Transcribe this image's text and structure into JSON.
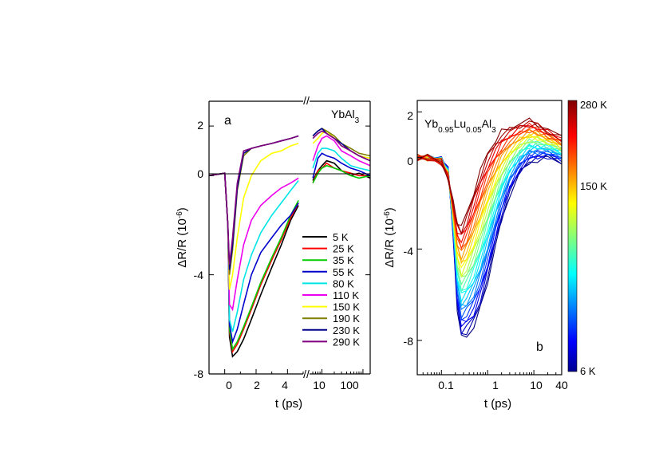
{
  "chart_data": [
    {
      "type": "line",
      "panel_label": "a",
      "annotation": "YbAl",
      "annotation_sub": "3",
      "ylabel": "ΔR/R (10",
      "ylabel_sup": "-6",
      "ylabel_tail": ")",
      "xlabel": "t (ps)",
      "y_ticks": [
        "2",
        "0",
        "-4",
        "-8"
      ],
      "x_ticks_linear": [
        "0",
        "2",
        "4"
      ],
      "x_ticks_log": [
        "10",
        "100"
      ],
      "ylim": [
        -8,
        3
      ],
      "xlim_linear": [
        -1,
        5
      ],
      "xlim_log": [
        5,
        150
      ],
      "axis_break": "//",
      "legend_position": "lower-right",
      "series": [
        {
          "name": "5 K",
          "color": "#000000",
          "x": [
            -1,
            0,
            0.2,
            0.3,
            0.5,
            0.8,
            1.2,
            1.7,
            2.3,
            3,
            3.6,
            4.2,
            4.7,
            6,
            8,
            10,
            13,
            20,
            30,
            50,
            80,
            150
          ],
          "y": [
            0,
            0.1,
            -2,
            -6.5,
            -7.3,
            -7.1,
            -6.6,
            -5.8,
            -4.8,
            -3.7,
            -2.8,
            -1.8,
            -1.2,
            -0.2,
            0.2,
            0.4,
            0.6,
            0.5,
            0.2,
            0,
            0.1,
            -0.1
          ]
        },
        {
          "name": "25 K",
          "color": "#ff0000",
          "x": [
            -1,
            0,
            0.2,
            0.3,
            0.5,
            0.8,
            1.2,
            1.7,
            2.3,
            3,
            3.6,
            4.2,
            4.7,
            6,
            8,
            10,
            13,
            20,
            30,
            50,
            80,
            150
          ],
          "y": [
            0,
            0.1,
            -2,
            -6.3,
            -7.1,
            -6.8,
            -6.2,
            -5.4,
            -4.4,
            -3.4,
            -2.6,
            -1.7,
            -1.1,
            -0.3,
            0.2,
            0.3,
            0.5,
            0.3,
            0.2,
            0.1,
            0,
            0
          ]
        },
        {
          "name": "35 K",
          "color": "#00cc00",
          "x": [
            -1,
            0,
            0.2,
            0.3,
            0.5,
            0.8,
            1.2,
            1.7,
            2.3,
            3,
            3.6,
            4.2,
            4.7,
            6,
            8,
            10,
            13,
            20,
            30,
            50,
            80,
            150
          ],
          "y": [
            0,
            0.1,
            -2,
            -6.2,
            -7.0,
            -6.7,
            -6.1,
            -5.3,
            -4.3,
            -3.3,
            -2.5,
            -1.6,
            -1.0,
            -0.3,
            0.1,
            0.3,
            0.4,
            0.3,
            0.2,
            0,
            -0.1,
            0
          ]
        },
        {
          "name": "55 K",
          "color": "#0000cc",
          "x": [
            -1,
            0,
            0.2,
            0.3,
            0.5,
            0.8,
            1.2,
            1.7,
            2.3,
            3,
            3.6,
            4.2,
            4.7,
            6,
            8,
            10,
            13,
            20,
            30,
            50,
            80,
            150
          ],
          "y": [
            0,
            0.1,
            -2,
            -6,
            -6.7,
            -6.2,
            -5.2,
            -4,
            -3.1,
            -2.5,
            -2,
            -1.6,
            -1.1,
            -0.1,
            0.7,
            0.9,
            0.8,
            0.7,
            0.5,
            0.3,
            0.2,
            0
          ]
        },
        {
          "name": "80 K",
          "color": "#00e5e5",
          "x": [
            -1,
            0,
            0.2,
            0.3,
            0.5,
            0.8,
            1.2,
            1.7,
            2.3,
            3,
            3.6,
            4.2,
            4.7,
            6,
            8,
            10,
            13,
            20,
            30,
            50,
            80,
            150
          ],
          "y": [
            0,
            0.1,
            -2,
            -5.8,
            -6.3,
            -5.5,
            -4.2,
            -3.2,
            -2.3,
            -1.6,
            -1.1,
            -0.6,
            -0.2,
            0.3,
            0.9,
            1.1,
            1.1,
            1.0,
            0.7,
            0.4,
            0.3,
            0.2
          ]
        },
        {
          "name": "110 K",
          "color": "#ee00ee",
          "x": [
            -1,
            0,
            0.2,
            0.3,
            0.5,
            0.8,
            1.2,
            1.7,
            2.3,
            3,
            3.6,
            4.2,
            4.7,
            6,
            8,
            10,
            13,
            20,
            30,
            50,
            80,
            150
          ],
          "y": [
            0,
            0.1,
            -2,
            -5.2,
            -5.4,
            -4.2,
            -2.8,
            -1.8,
            -1.2,
            -0.8,
            -0.5,
            -0.3,
            -0.1,
            0.6,
            1.2,
            1.5,
            1.6,
            1.4,
            1.0,
            0.8,
            0.6,
            0.4
          ]
        },
        {
          "name": "150 K",
          "color": "#ffff00",
          "x": [
            -1,
            0,
            0.2,
            0.3,
            0.5,
            0.8,
            1.2,
            1.7,
            2.3,
            3,
            3.6,
            4.2,
            4.7,
            6,
            8,
            10,
            13,
            20,
            30,
            50,
            80,
            150
          ],
          "y": [
            0,
            0.1,
            -2,
            -4.6,
            -4.0,
            -2.5,
            -0.9,
            0,
            0.6,
            0.9,
            1.0,
            1.2,
            1.3,
            1.3,
            1.5,
            1.7,
            1.8,
            1.5,
            1.2,
            1.0,
            0.8,
            0.7
          ]
        },
        {
          "name": "190 K",
          "color": "#7f7f00",
          "x": [
            -1,
            0,
            0.2,
            0.3,
            0.5,
            0.8,
            1.2,
            1.7,
            2.3,
            3,
            3.6,
            4.2,
            4.7,
            6,
            8,
            10,
            13,
            20,
            30,
            50,
            80,
            150
          ],
          "y": [
            0,
            0.1,
            -2,
            -4.0,
            -3.0,
            -0.6,
            0.8,
            1.1,
            1.2,
            1.3,
            1.4,
            1.5,
            1.6,
            1.6,
            1.8,
            1.9,
            1.8,
            1.6,
            1.3,
            1.1,
            0.9,
            0.8
          ]
        },
        {
          "name": "230 K",
          "color": "#00008b",
          "x": [
            -1,
            0,
            0.2,
            0.3,
            0.5,
            0.8,
            1.2,
            1.7,
            2.3,
            3,
            3.6,
            4.2,
            4.7,
            6,
            8,
            10,
            13,
            20,
            30,
            50,
            80,
            150
          ],
          "y": [
            0,
            0.1,
            -2,
            -3.8,
            -2.8,
            -0.5,
            0.9,
            1.1,
            1.2,
            1.3,
            1.4,
            1.5,
            1.6,
            1.6,
            1.8,
            1.9,
            1.7,
            1.5,
            1.3,
            1.0,
            0.8,
            0.6
          ]
        },
        {
          "name": "290 K",
          "color": "#800080",
          "x": [
            -1,
            0,
            0.2,
            0.3,
            0.5,
            0.8,
            1.2,
            1.7,
            2.3,
            3,
            3.6,
            4.2,
            4.7,
            6,
            8,
            10,
            13,
            20,
            30,
            50,
            80,
            150
          ],
          "y": [
            0,
            0.1,
            -2,
            -3.6,
            -2.5,
            -0.3,
            1.0,
            1.1,
            1.2,
            1.3,
            1.4,
            1.5,
            1.6,
            1.5,
            1.7,
            1.8,
            1.7,
            1.5,
            1.2,
            1.0,
            0.8,
            0.6
          ]
        }
      ]
    },
    {
      "type": "line",
      "panel_label": "b",
      "annotation_parts": [
        "Yb",
        "0.95",
        "Lu",
        "0.05",
        "Al",
        "3"
      ],
      "ylabel": "ΔR/R (10",
      "ylabel_sup": "-6",
      "ylabel_tail": ")",
      "xlabel": "t (ps)",
      "y_ticks": [
        "2",
        "0",
        "-4",
        "-8"
      ],
      "x_ticks": [
        "0.1",
        "1",
        "10",
        "40"
      ],
      "x_scale": "log",
      "xlim": [
        0.03,
        40
      ],
      "ylim": [
        -9.5,
        2.5
      ],
      "colorbar": {
        "labels": [
          "280 K",
          "150 K",
          "6 K"
        ],
        "min_K": 6,
        "max_K": 280,
        "colormap": "jet"
      },
      "curve_shape": {
        "t": [
          0.03,
          0.05,
          0.1,
          0.14,
          0.18,
          0.22,
          0.27,
          0.35,
          0.5,
          0.7,
          1,
          1.5,
          2,
          3,
          5,
          8,
          12,
          20,
          40
        ],
        "low_T": [
          0,
          0,
          -0.1,
          -0.5,
          -3.5,
          -6.6,
          -7.9,
          -7.8,
          -7.4,
          -6.6,
          -5.4,
          -3.8,
          -2.8,
          -1.6,
          -0.7,
          -0.2,
          -0.1,
          0,
          -0.2
        ],
        "high_T": [
          0,
          0,
          -0.2,
          -0.9,
          -2.0,
          -2.8,
          -3.0,
          -2.5,
          -1.5,
          -0.6,
          0.2,
          0.8,
          1.1,
          1.3,
          1.5,
          1.6,
          1.5,
          1.2,
          0.9
        ],
        "n_curves": 30
      }
    }
  ]
}
